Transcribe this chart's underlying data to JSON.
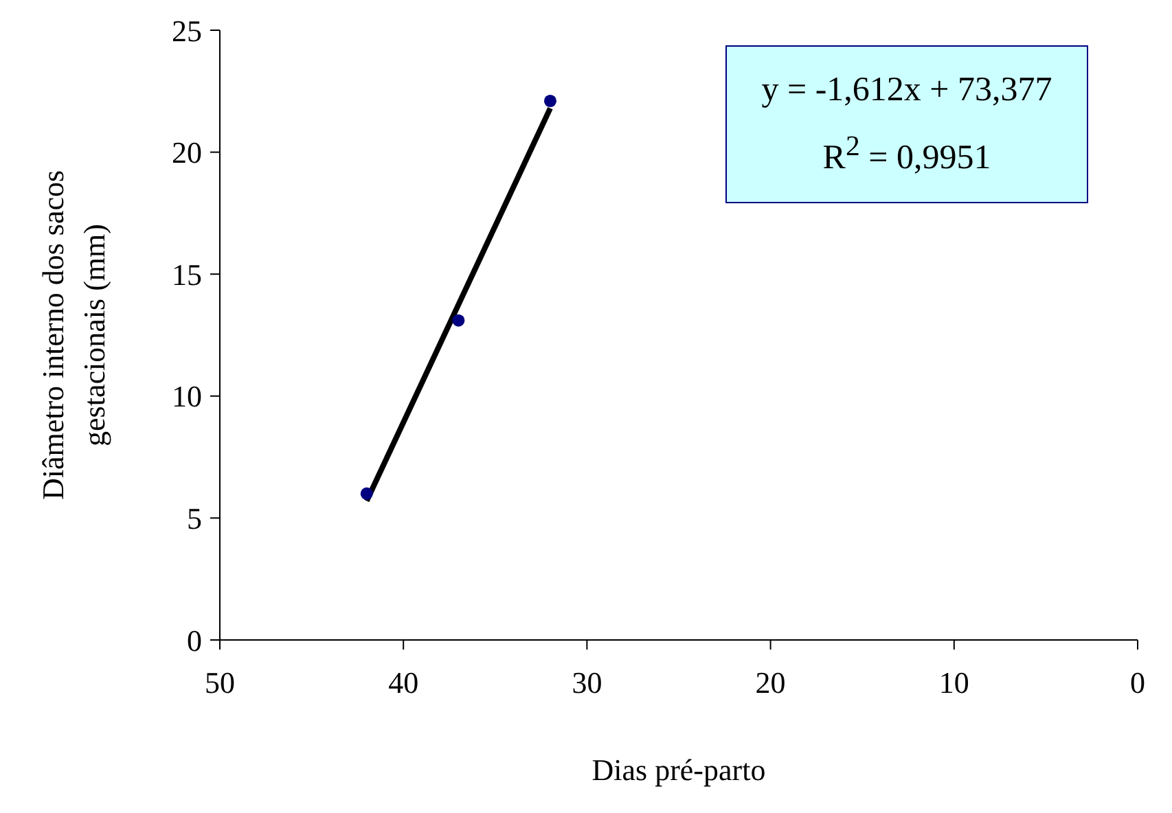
{
  "chart_data": {
    "type": "scatter",
    "xlabel": "Dias pré-parto",
    "ylabel": "Diâmetro interno dos sacos gestacionais (mm)",
    "series": [
      {
        "color": "#000080",
        "marker": "circle",
        "x": [
          42,
          37,
          32
        ],
        "values": [
          6.0,
          13.1,
          22.1
        ]
      },
      {
        "type": "line",
        "color": "#000000",
        "marker": "none",
        "line_style": "solid",
        "x": [
          42,
          32
        ],
        "values": [
          5.7,
          21.8
        ]
      }
    ],
    "annotations": [
      "y = -1,612x + 73,377",
      "R$^{2}$ = 0,9951"
    ],
    "xlim": [
      50,
      0
    ],
    "xticks": [
      50,
      40,
      30,
      20,
      10,
      0
    ],
    "ylim": [
      0,
      25
    ],
    "yticks": [
      0,
      5,
      10,
      15,
      20,
      25
    ],
    "grid": false,
    "legend": false
  }
}
